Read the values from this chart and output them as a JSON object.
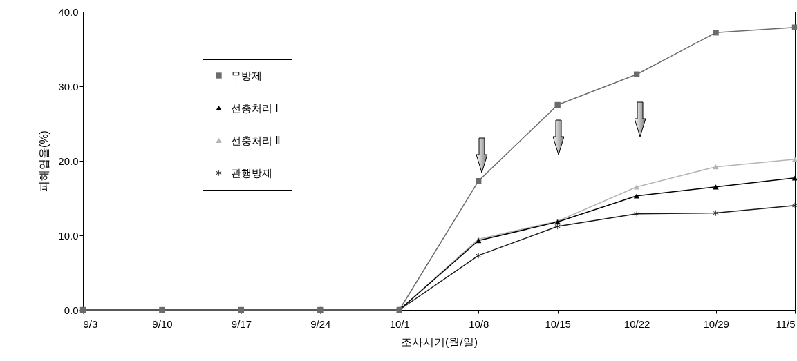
{
  "chart_data": {
    "type": "line",
    "xlabel": "조사시기(월/일)",
    "ylabel": "피해엽율(%)",
    "x": [
      "--09-03",
      "--09-10",
      "--09-17",
      "--09-24",
      "--10-01",
      "--10-08",
      "--10-15",
      "--10-22",
      "--10-29",
      "--11-05"
    ],
    "xlim": [
      "--09-03",
      "--11-05"
    ],
    "xticks": [
      {
        "value": "--09-03",
        "label": "9/3"
      },
      {
        "value": "--09-10",
        "label": "9/10"
      },
      {
        "value": "--09-17",
        "label": "9/17"
      },
      {
        "value": "--09-24",
        "label": "9/24"
      },
      {
        "value": "--10-01",
        "label": "10/1"
      },
      {
        "value": "--10-08",
        "label": "10/8"
      },
      {
        "value": "--10-15",
        "label": "10/15"
      },
      {
        "value": "--10-22",
        "label": "10/22"
      },
      {
        "value": "--10-29",
        "label": "10/29"
      },
      {
        "value": "--11-05",
        "label": "11/5"
      }
    ],
    "ylim": [
      0,
      40
    ],
    "yticks": [
      {
        "value": 0,
        "label": "0.0"
      },
      {
        "value": 10,
        "label": "10.0"
      },
      {
        "value": 20,
        "label": "20.0"
      },
      {
        "value": 30,
        "label": "30.0"
      },
      {
        "value": 40,
        "label": "40.0"
      }
    ],
    "grid": false,
    "legend": "top left",
    "series": [
      {
        "name": "무방제",
        "color": "#6b6b6b",
        "marker": "square",
        "values": [
          0,
          0,
          0,
          0,
          0,
          17.3,
          27.5,
          31.6,
          37.2,
          37.9
        ]
      },
      {
        "name": "선충처리 Ⅰ",
        "color": "#000000",
        "marker": "triangle",
        "values": [
          0,
          0,
          0,
          0,
          0,
          9.3,
          11.8,
          15.3,
          16.5,
          17.7
        ]
      },
      {
        "name": "선충처리 Ⅱ",
        "color": "#b4b4b4",
        "marker": "triangle",
        "values": [
          0,
          0,
          0,
          0,
          0,
          9.5,
          11.9,
          16.5,
          19.2,
          20.2
        ]
      },
      {
        "name": "관행방제",
        "color": "#1a1a1a",
        "marker": "cross",
        "values": [
          0,
          0,
          0,
          0,
          0,
          7.3,
          11.2,
          12.9,
          13.0,
          14.0
        ]
      }
    ]
  }
}
